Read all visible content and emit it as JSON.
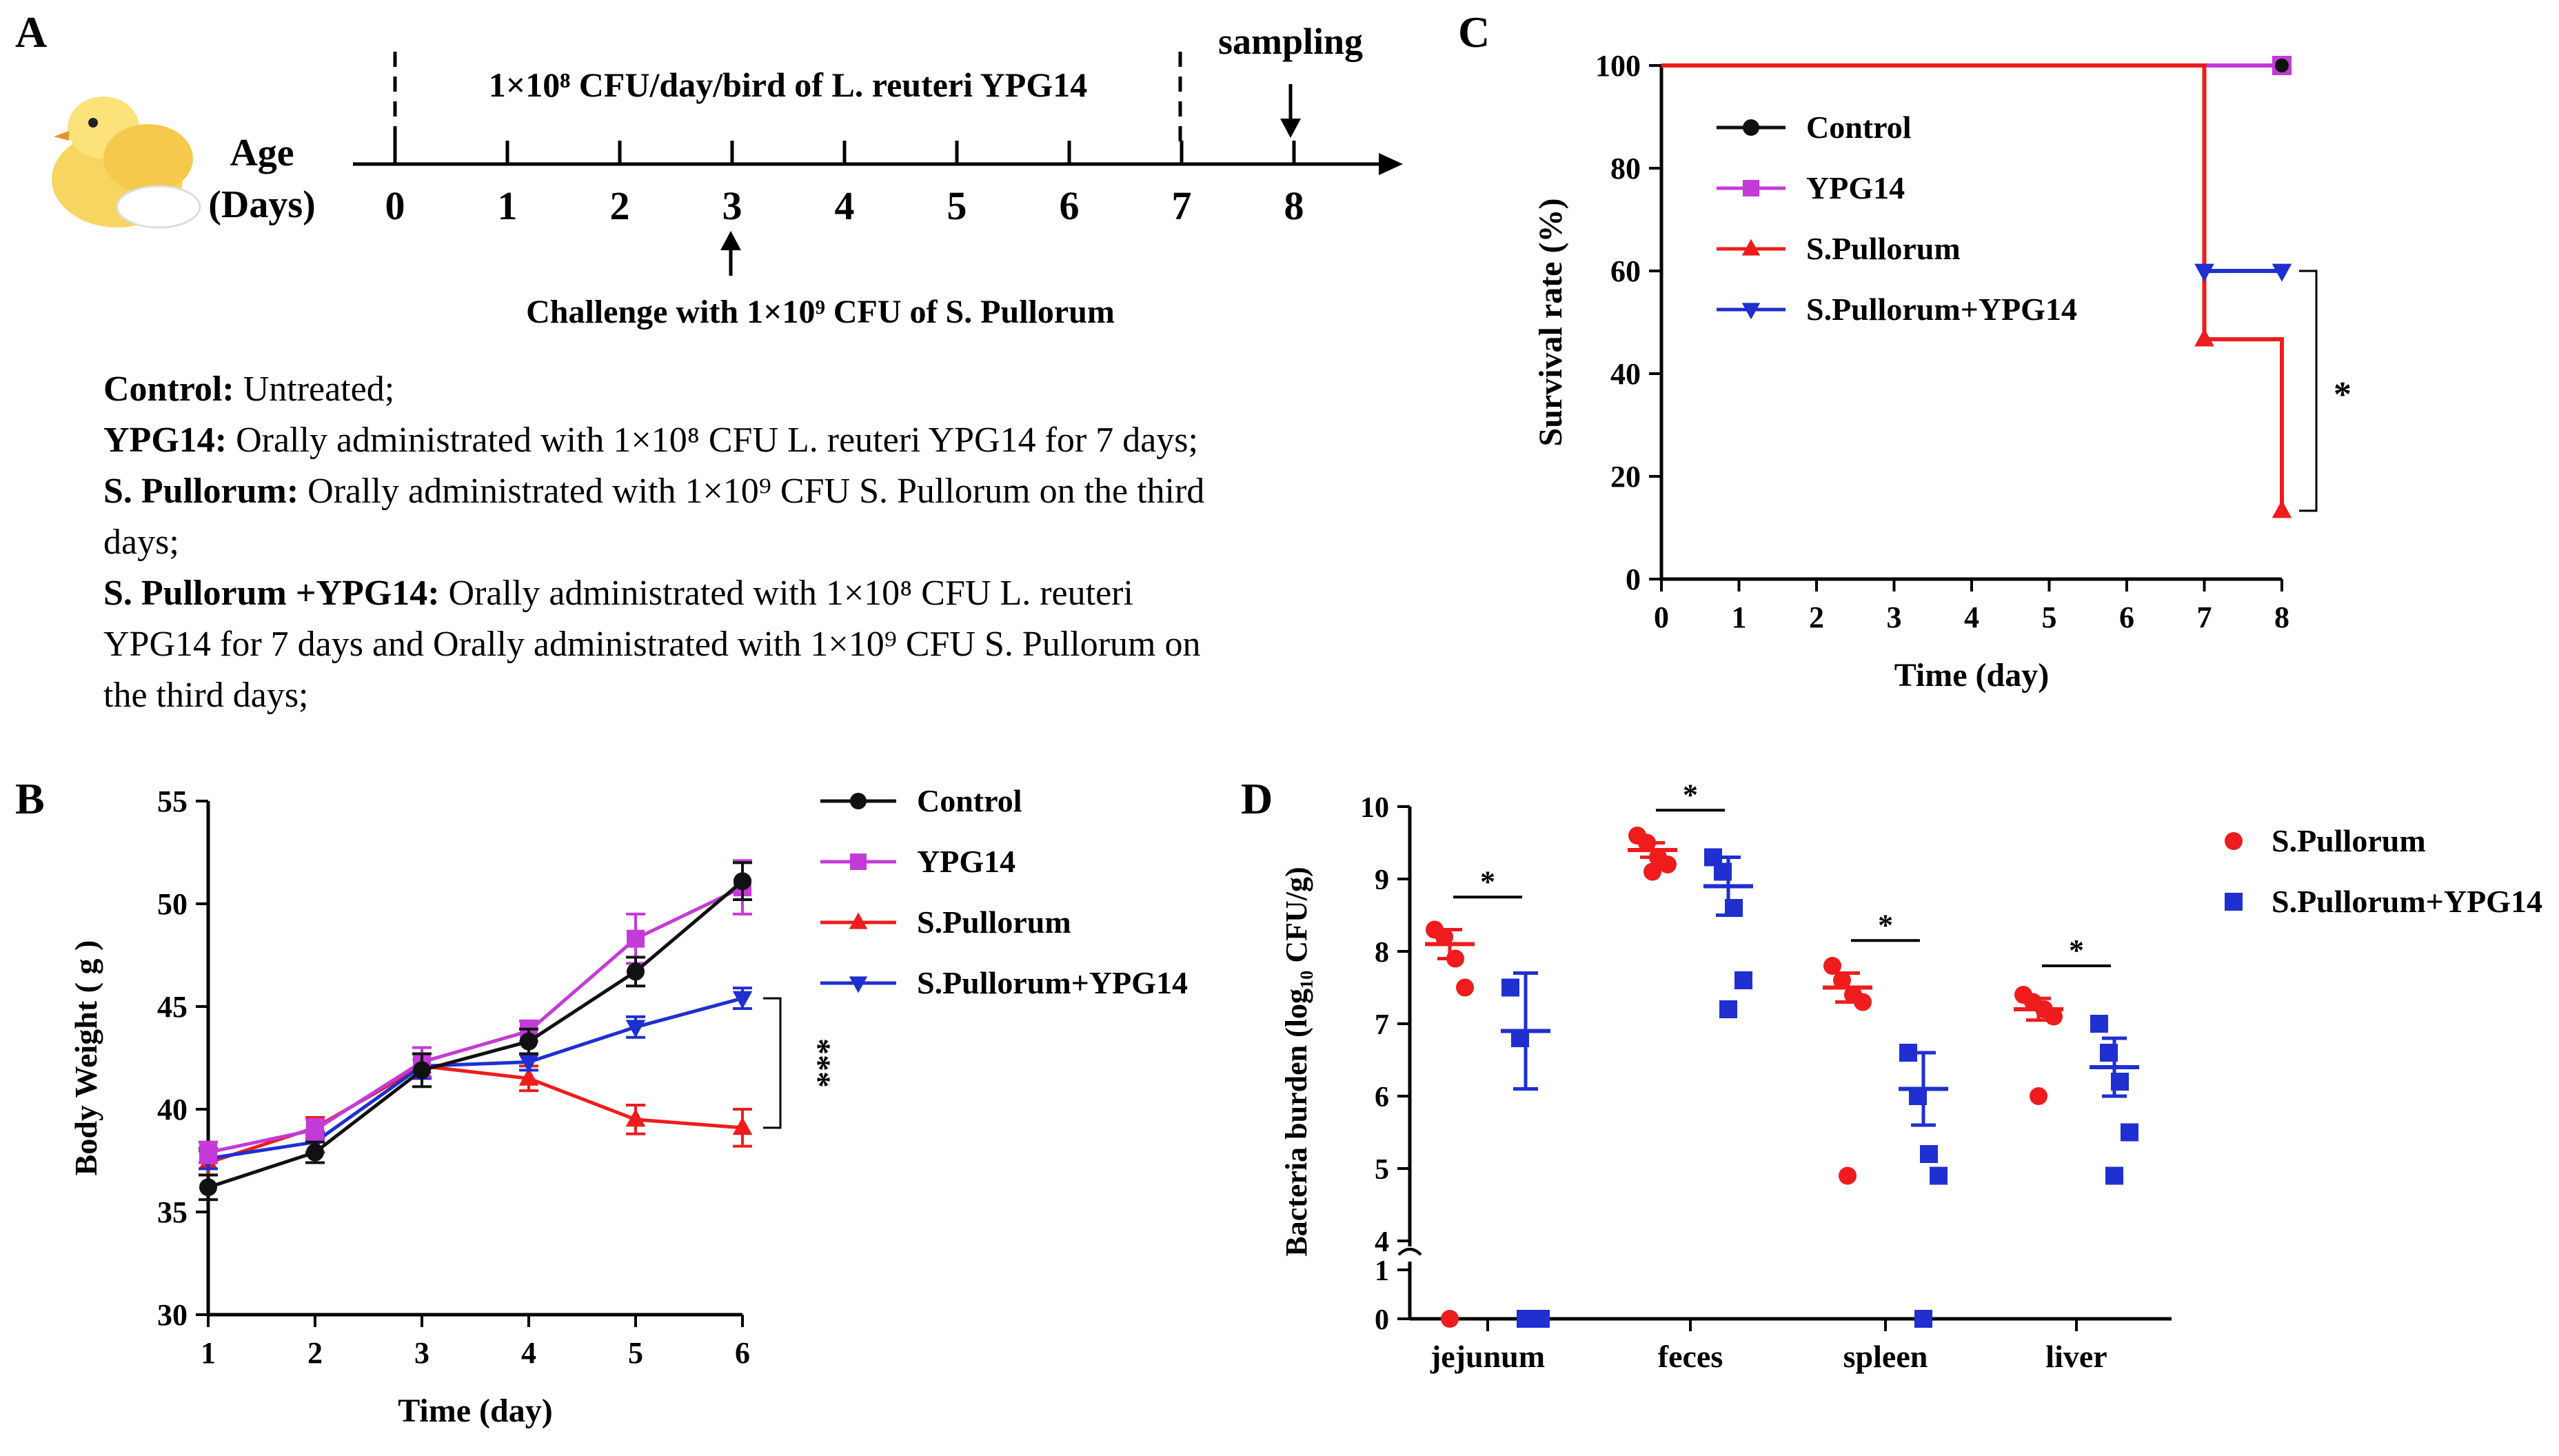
{
  "panel_letters": {
    "a": "A",
    "b": "B",
    "c": "C",
    "d": "D"
  },
  "panel_a": {
    "age_label": "Age",
    "days_label": "(Days)",
    "days": [
      "0",
      "1",
      "2",
      "3",
      "4",
      "5",
      "6",
      "7",
      "8"
    ],
    "dose_label": "1×10⁸ CFU/day/bird of L. reuteri YPG14",
    "sampling_label": "sampling",
    "challenge_label": "Challenge with 1×10⁹ CFU of S. Pullorum",
    "definitions": [
      {
        "term": "Control:",
        "text": " Untreated;"
      },
      {
        "term": "YPG14:",
        "text": " Orally administrated with 1×10⁸ CFU L. reuteri YPG14 for 7 days;"
      },
      {
        "term": " S. Pullorum:",
        "text": " Orally administrated with 1×10⁹ CFU S. Pullorum on the third"
      },
      {
        "term": "",
        "text": "days;"
      },
      {
        "term": "S. Pullorum +YPG14:",
        "text": " Orally administrated with 1×10⁸ CFU L. reuteri"
      },
      {
        "term": "",
        "text": "YPG14 for 7 days and Orally administrated with 1×10⁹ CFU S. Pullorum on"
      },
      {
        "term": "",
        "text": "the third days;"
      }
    ]
  },
  "colors": {
    "control": "#111111",
    "ypg14": "#c43ad8",
    "pullorum": "#ee1c1c",
    "pullorum_ypg14": "#1f2fd0"
  },
  "chart_data": [
    {
      "id": "B",
      "type": "line",
      "xlabel": "Time (day)",
      "ylabel": "Body Weight ( g )",
      "xlim": [
        1,
        6
      ],
      "ylim": [
        30,
        55
      ],
      "xticks": [
        "1",
        "2",
        "3",
        "4",
        "5",
        "6"
      ],
      "yticks": [
        "30",
        "35",
        "40",
        "45",
        "50",
        "55"
      ],
      "x": [
        1,
        2,
        3,
        4,
        5,
        6
      ],
      "significance": "***",
      "series": [
        {
          "name": "Control",
          "key": "control",
          "marker": "circle",
          "values": [
            36.2,
            37.9,
            41.9,
            43.3,
            46.7,
            51.1
          ],
          "err": [
            0.6,
            0.5,
            0.8,
            0.6,
            0.7,
            0.9
          ]
        },
        {
          "name": "YPG14",
          "key": "ypg14",
          "marker": "square",
          "values": [
            37.9,
            39.0,
            42.3,
            43.8,
            48.3,
            50.8
          ],
          "err": [
            0.5,
            0.5,
            0.7,
            0.5,
            1.2,
            1.3
          ]
        },
        {
          "name": "S.Pullorum",
          "key": "pullorum",
          "marker": "triangle-up",
          "values": [
            37.4,
            39.1,
            42.1,
            41.5,
            39.5,
            39.1
          ],
          "err": [
            0.6,
            0.5,
            0.6,
            0.6,
            0.7,
            0.9
          ]
        },
        {
          "name": "S.Pullorum+YPG14",
          "key": "pullorum_ypg14",
          "marker": "triangle-down",
          "values": [
            37.6,
            38.4,
            42.1,
            42.3,
            44.0,
            45.4
          ],
          "err": [
            0.5,
            0.5,
            0.6,
            0.4,
            0.5,
            0.5
          ]
        }
      ]
    },
    {
      "id": "C",
      "type": "line",
      "xlabel": "Time (day)",
      "ylabel": "Survival rate (%)",
      "xlim": [
        0,
        8
      ],
      "ylim": [
        0,
        100
      ],
      "xticks": [
        "0",
        "1",
        "2",
        "3",
        "4",
        "5",
        "6",
        "7",
        "8"
      ],
      "yticks": [
        "0",
        "20",
        "40",
        "60",
        "80",
        "100"
      ],
      "significance": "*",
      "series": [
        {
          "name": "Control",
          "key": "control",
          "marker": "circle",
          "points": [
            [
              0,
              100
            ],
            [
              8,
              100
            ]
          ]
        },
        {
          "name": "YPG14",
          "key": "ypg14",
          "marker": "square",
          "points": [
            [
              0,
              100
            ],
            [
              8,
              100
            ]
          ]
        },
        {
          "name": "S.Pullorum",
          "key": "pullorum",
          "marker": "triangle-up",
          "points": [
            [
              0,
              100
            ],
            [
              7,
              100
            ],
            [
              7,
              46.7
            ],
            [
              8,
              46.7
            ],
            [
              8,
              13.3
            ]
          ]
        },
        {
          "name": "S.Pullorum+YPG14",
          "key": "pullorum_ypg14",
          "marker": "triangle-down",
          "points": [
            [
              0,
              100
            ],
            [
              7,
              100
            ],
            [
              7,
              60
            ],
            [
              8,
              60
            ]
          ]
        }
      ]
    },
    {
      "id": "D",
      "type": "scatter",
      "xlabel": "",
      "ylabel": "Bacteria burden (log₁₀ CFU/g)",
      "categories": [
        "jejunum",
        "feces",
        "spleen",
        "liver"
      ],
      "ylim_lower": [
        0,
        1
      ],
      "ylim_upper": [
        4,
        10
      ],
      "yticks": [
        "0",
        "1",
        "4",
        "5",
        "6",
        "7",
        "8",
        "9",
        "10"
      ],
      "significance": [
        "*",
        "*",
        "*",
        "*"
      ],
      "series": [
        {
          "name": "S.Pullorum",
          "key": "pullorum",
          "marker": "circle",
          "points": [
            [
              8.3,
              8.2,
              7.9,
              7.5,
              0
            ],
            [
              9.6,
              9.5,
              9.3,
              9.2,
              9.1
            ],
            [
              7.8,
              7.6,
              7.4,
              7.3,
              4.9
            ],
            [
              7.4,
              7.3,
              7.2,
              7.1,
              6.0
            ]
          ],
          "mean": [
            8.1,
            9.4,
            7.5,
            7.2
          ],
          "sem": [
            0.2,
            0.1,
            0.2,
            0.15
          ]
        },
        {
          "name": "S.Pullorum+YPG14",
          "key": "pullorum_ypg14",
          "marker": "square",
          "points": [
            [
              7.5,
              6.8,
              0,
              0,
              0
            ],
            [
              9.3,
              9.1,
              8.6,
              7.6,
              7.2
            ],
            [
              6.6,
              6.0,
              5.2,
              4.9,
              0
            ],
            [
              7.0,
              6.6,
              6.2,
              5.5,
              4.9
            ]
          ],
          "mean": [
            6.9,
            8.9,
            6.1,
            6.4
          ],
          "sem": [
            0.8,
            0.4,
            0.5,
            0.4
          ]
        }
      ]
    }
  ]
}
